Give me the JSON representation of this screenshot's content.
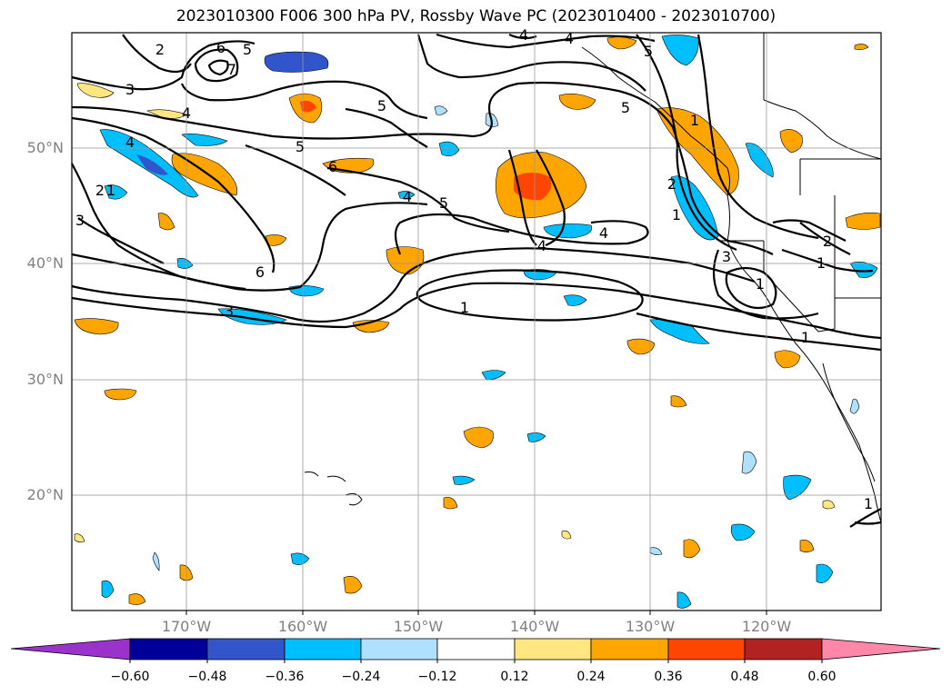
{
  "title": "2023010300 F006 300 hPa PV, Rossby Wave PC (2023010400 - 2023010700)",
  "map": {
    "region": "North-east Pacific",
    "lat_labels": [
      "50°N",
      "40°N",
      "30°N",
      "20°N"
    ],
    "lon_labels": [
      "170°W",
      "160°W",
      "150°W",
      "140°W",
      "130°W",
      "120°W"
    ],
    "contour_labels": [
      "6",
      "7",
      "5",
      "3",
      "2",
      "4",
      "5",
      "6",
      "5",
      "4",
      "2",
      "1",
      "4",
      "5",
      "4",
      "4",
      "1",
      "6",
      "3",
      "1",
      "3",
      "2",
      "1",
      "1",
      "5",
      "5",
      "3",
      "4",
      "4",
      "2",
      "1",
      "1",
      "1"
    ]
  },
  "colorbar": {
    "ticks": [
      "−0.60",
      "−0.48",
      "−0.36",
      "−0.24",
      "−0.12",
      "0.12",
      "0.24",
      "0.36",
      "0.48",
      "0.60"
    ],
    "colors": [
      "#9933cc",
      "#000099",
      "#3355cc",
      "#00bfff",
      "#b0e0ff",
      "#ffffff",
      "#ffe680",
      "#ffa500",
      "#ff4500",
      "#b22222",
      "#ff88aa",
      "#ff88aa"
    ]
  }
}
